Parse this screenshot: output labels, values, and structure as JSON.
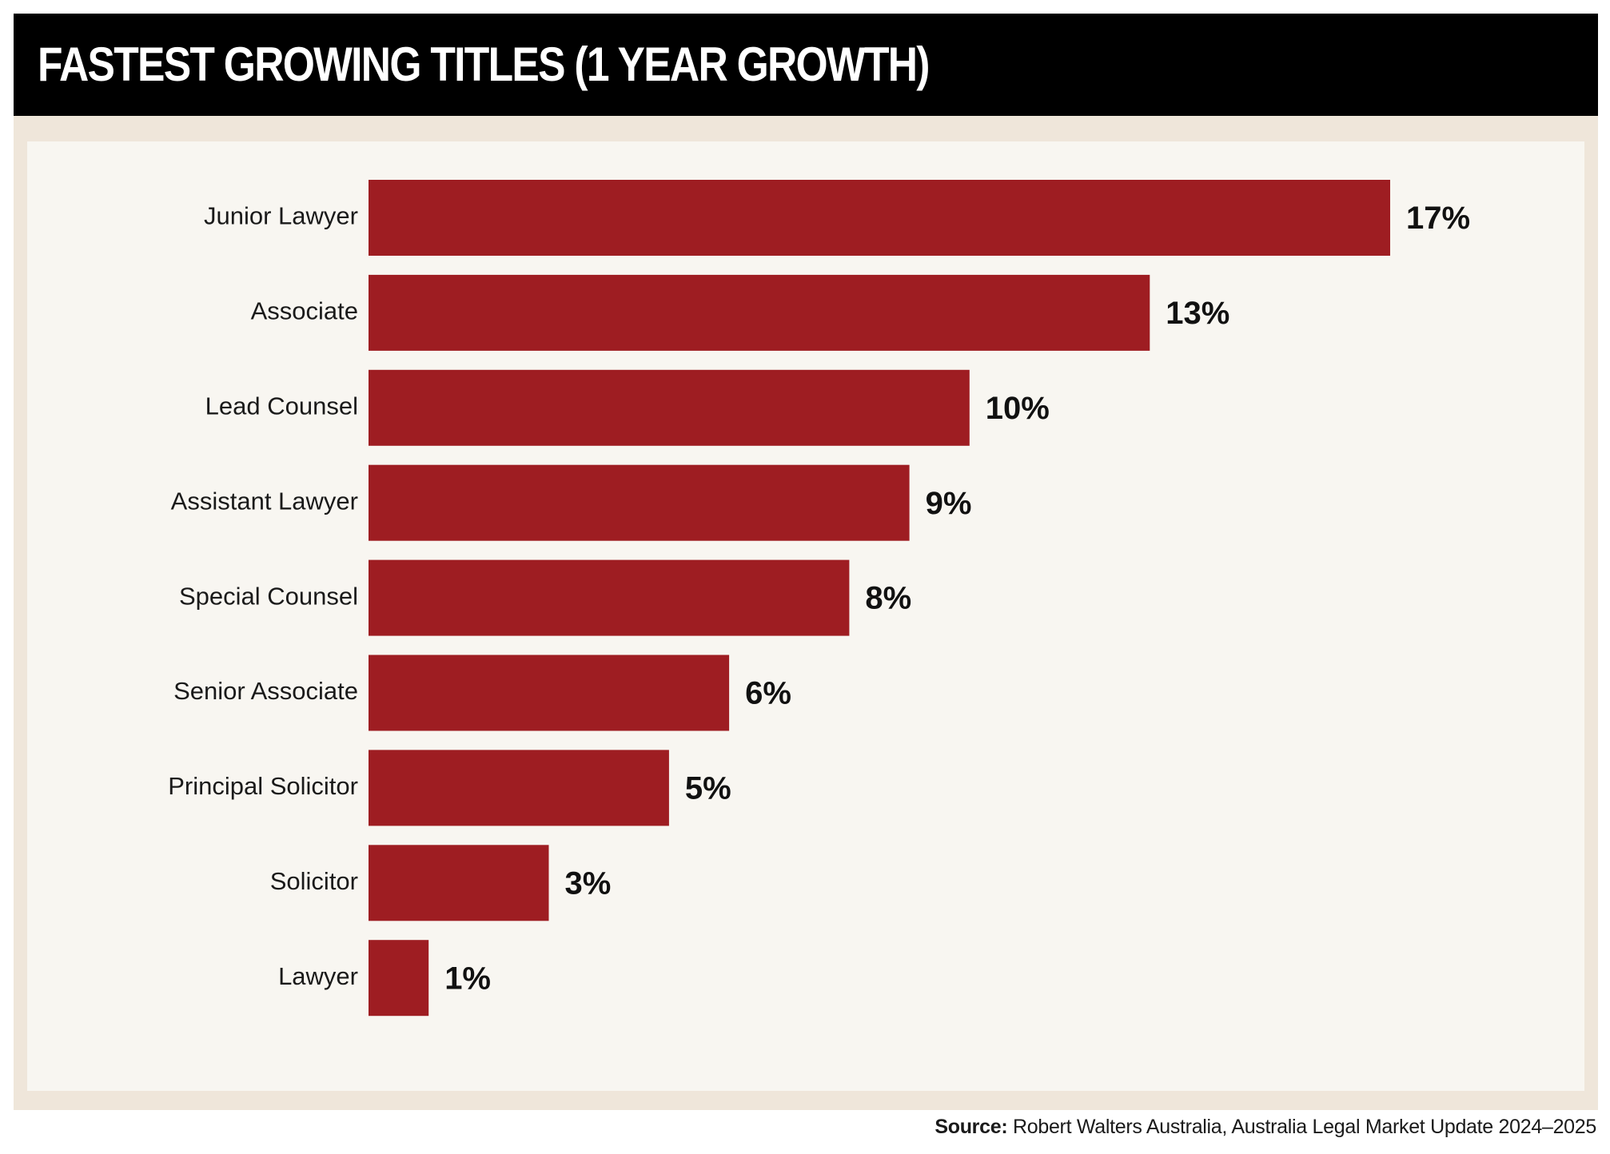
{
  "header": {
    "title": "FASTEST GROWING TITLES (1 YEAR GROWTH)"
  },
  "colors": {
    "bar": "#9e1d22",
    "title_background": "#000000",
    "frame": "#efe6da",
    "panel": "#f8f6f1"
  },
  "chart_data": {
    "type": "bar",
    "orientation": "horizontal",
    "title": "FASTEST GROWING TITLES (1 YEAR GROWTH)",
    "categories": [
      "Junior Lawyer",
      "Associate",
      "Lead Counsel",
      "Assistant Lawyer",
      "Special Counsel",
      "Senior Associate",
      "Principal Solicitor",
      "Solicitor",
      "Lawyer"
    ],
    "values": [
      17,
      13,
      10,
      9,
      8,
      6,
      5,
      3,
      1
    ],
    "value_labels": [
      "17%",
      "13%",
      "10%",
      "9%",
      "8%",
      "6%",
      "5%",
      "3%",
      "1%"
    ],
    "unit": "%",
    "xlim": [
      0,
      17
    ],
    "grid": false,
    "legend": "none"
  },
  "footer": {
    "source_label": "Source:",
    "source_text": " Robert Walters Australia, Australia Legal Market Update 2024–2025"
  }
}
